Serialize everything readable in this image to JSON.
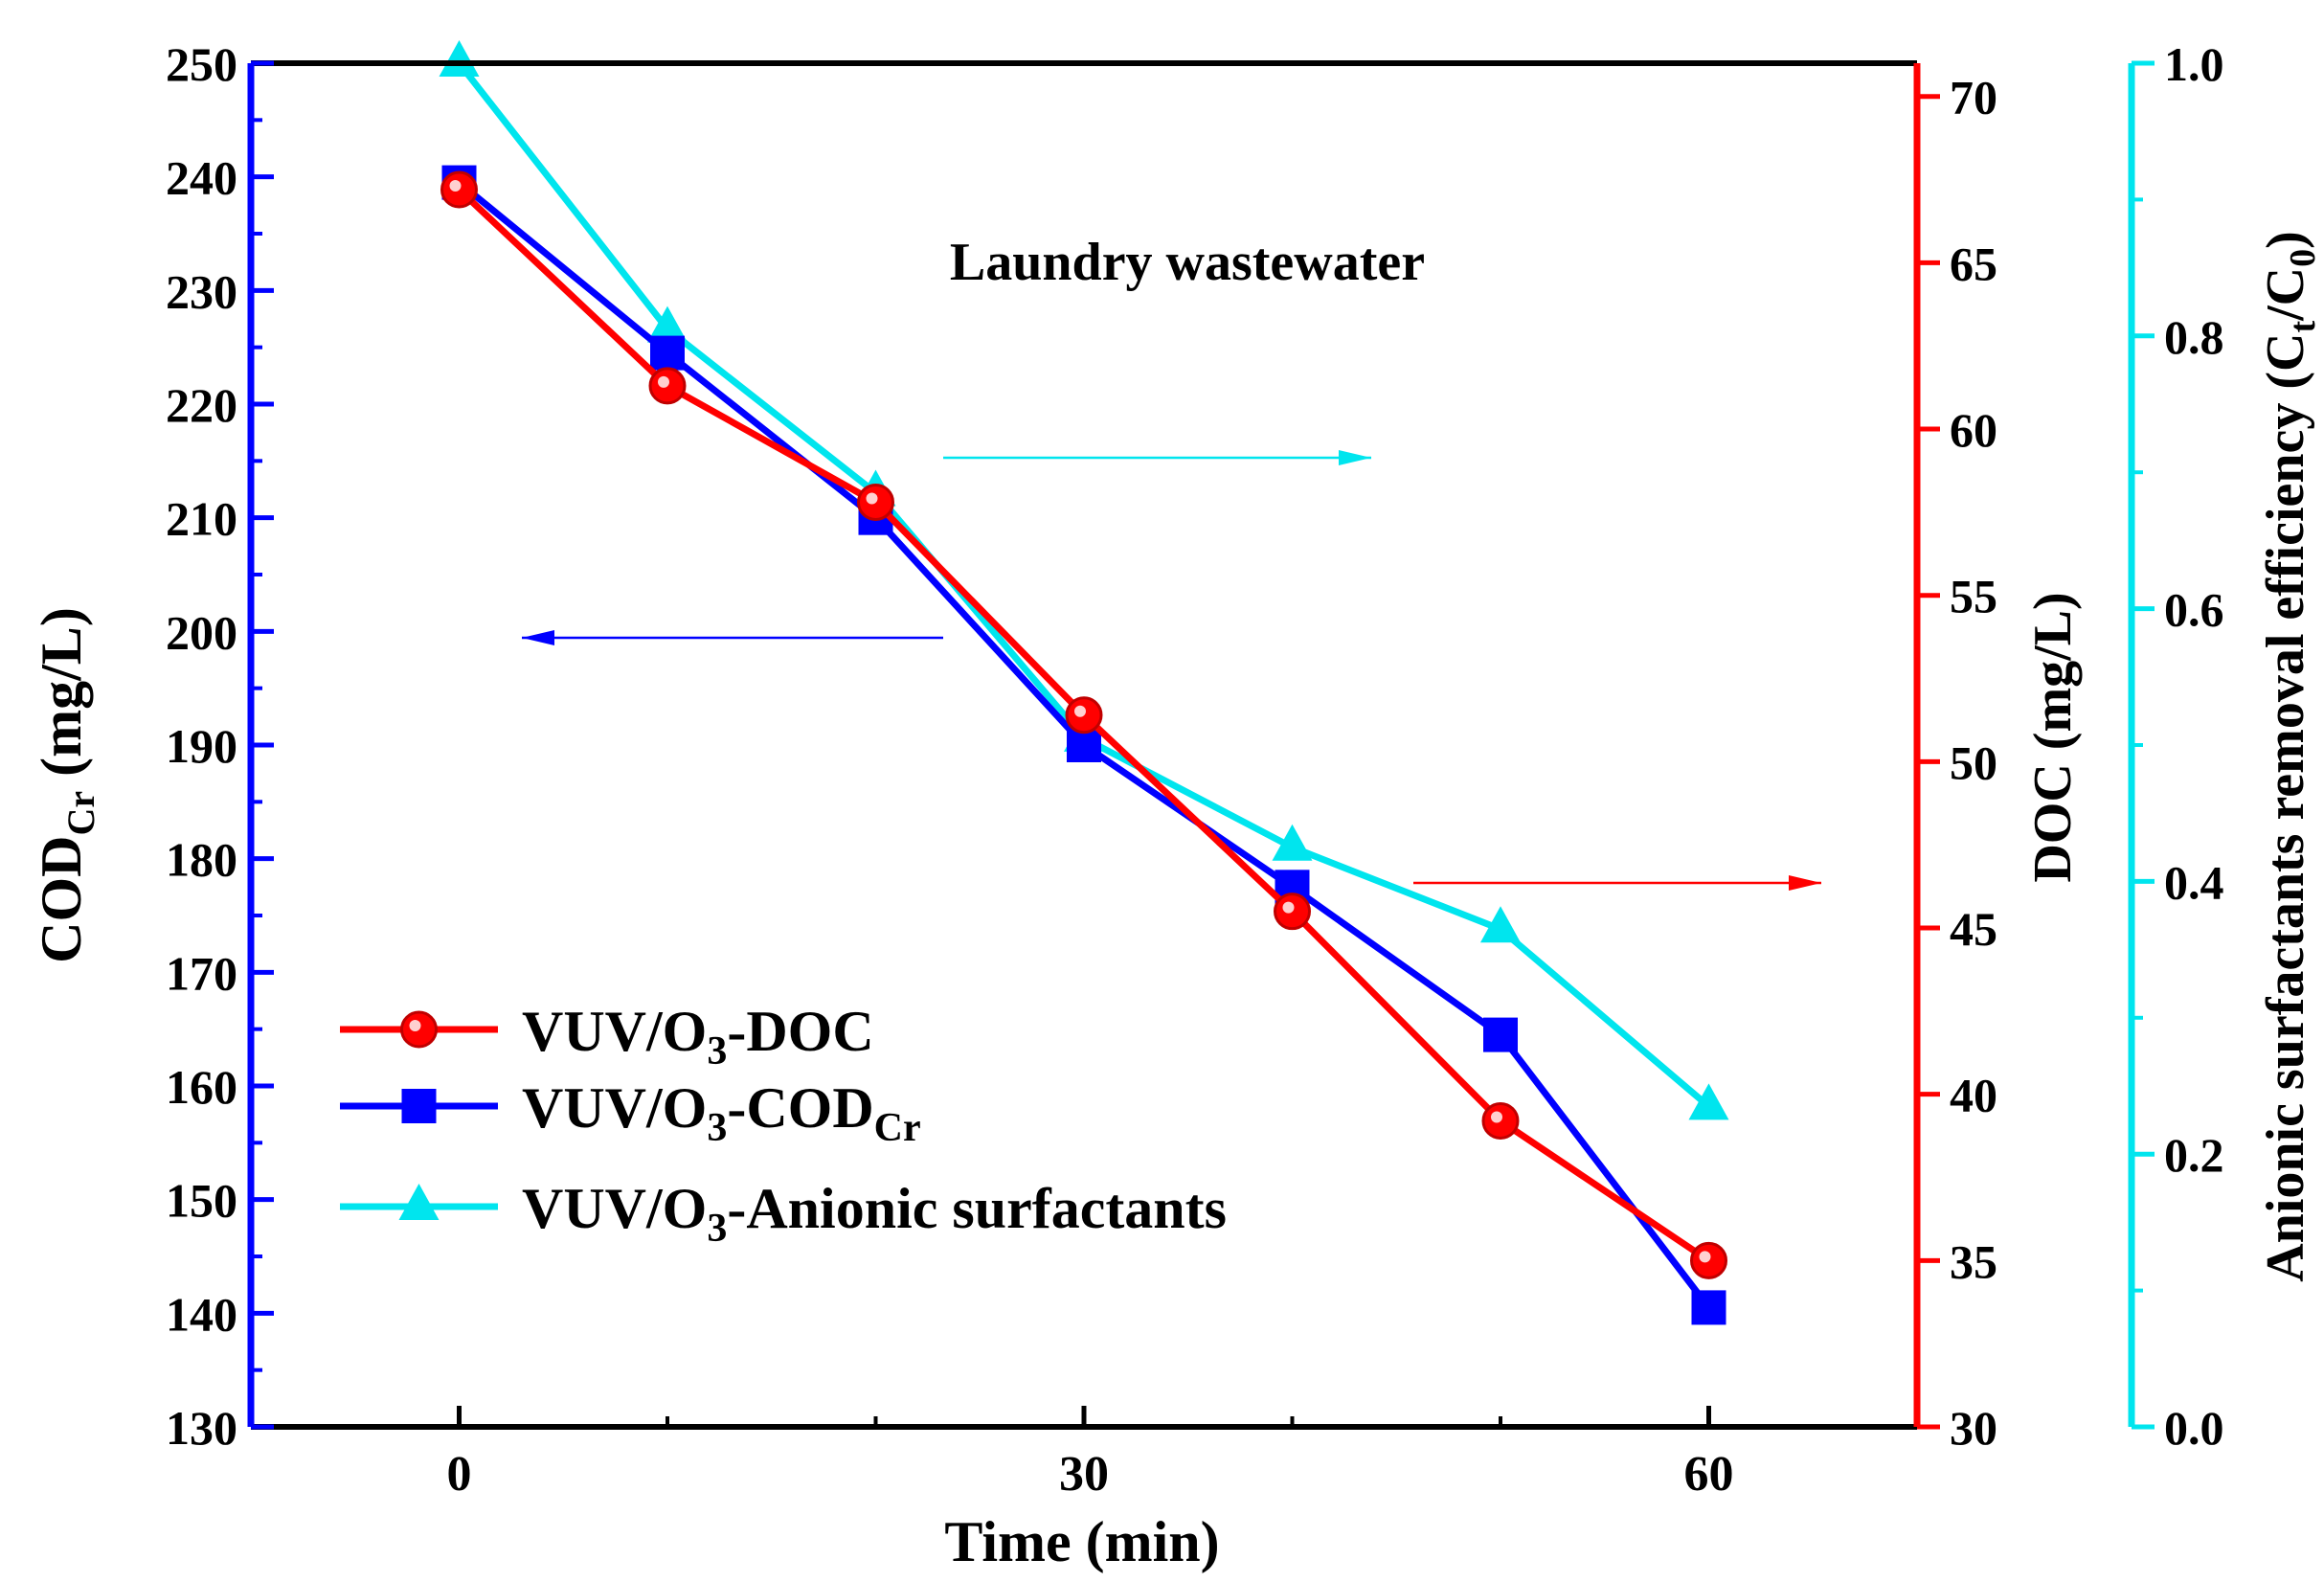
{
  "chart_data": {
    "type": "line",
    "title": "Laundry wastewater",
    "x": [
      0,
      10,
      20,
      30,
      40,
      50,
      60
    ],
    "xlabel": "Time (min)",
    "xlim": [
      -10,
      70
    ],
    "xticks": [
      "0",
      "30",
      "60"
    ],
    "left_axis": {
      "label_main": "COD",
      "label_sub": "Cr",
      "label_tail": " (mg/L)",
      "color": "#0000ff",
      "ylim": [
        130,
        250
      ],
      "ticks": [
        "130",
        "140",
        "150",
        "160",
        "170",
        "180",
        "190",
        "200",
        "210",
        "220",
        "230",
        "240",
        "250"
      ]
    },
    "right_axis_1": {
      "label": "DOC (mg/L)",
      "color": "#ff0000",
      "ylim": [
        30,
        71
      ],
      "ticks": [
        "30",
        "35",
        "40",
        "45",
        "50",
        "55",
        "60",
        "65",
        "70"
      ]
    },
    "right_axis_2": {
      "label_main": "Anionic surfactants  removal efficiency (C",
      "label_sub1": "t",
      "label_mid": "/C",
      "label_sub2": "0",
      "label_tail": ")",
      "color": "#00e5ee",
      "ylim": [
        0.0,
        1.0
      ],
      "ticks": [
        "0.0",
        "0.2",
        "0.4",
        "0.6",
        "0.8",
        "1.0"
      ]
    },
    "series": [
      {
        "name": "VUV/O3-DOC",
        "legend_main": "VUV/O",
        "legend_sub": "3",
        "legend_tail": "-DOC",
        "legend_sub2": "",
        "axis": "right_axis_1",
        "color": "#ff0000",
        "marker": "circle",
        "values": [
          67.2,
          61.3,
          57.8,
          51.4,
          45.5,
          39.2,
          35.0
        ]
      },
      {
        "name": "VUV/O3-CODCr",
        "legend_main": "VUV/O",
        "legend_sub": "3",
        "legend_tail": "-COD",
        "legend_sub2": "Cr",
        "axis": "left_axis",
        "color": "#0000ff",
        "marker": "square",
        "values": [
          239.5,
          224.5,
          210.0,
          190.0,
          177.5,
          164.5,
          140.5
        ]
      },
      {
        "name": "VUV/O3-Anionic surfactants",
        "legend_main": "VUV/O",
        "legend_sub": "3",
        "legend_tail": "-Anionic surfactants",
        "legend_sub2": "",
        "axis": "right_axis_2",
        "color": "#00e5ee",
        "marker": "triangle",
        "values": [
          1.0,
          0.805,
          0.685,
          0.505,
          0.425,
          0.365,
          0.235
        ]
      }
    ]
  }
}
